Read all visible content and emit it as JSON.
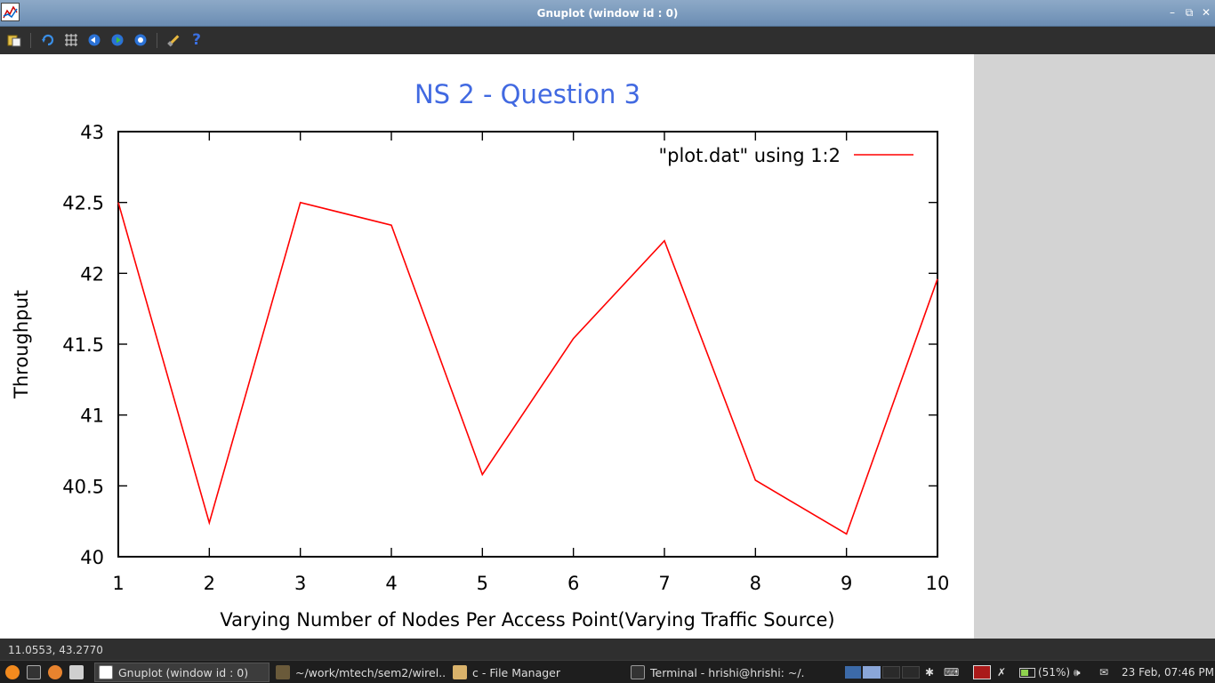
{
  "window": {
    "title": "Gnuplot (window id : 0)",
    "controls": [
      "minimize-icon",
      "restore-icon",
      "close-icon"
    ]
  },
  "toolbar": {
    "buttons": [
      {
        "name": "copy-to-clipboard-icon"
      },
      {
        "name": "replot-icon"
      },
      {
        "name": "toggle-grid-icon"
      },
      {
        "name": "previous-zoom-icon"
      },
      {
        "name": "next-zoom-icon"
      },
      {
        "name": "autoscale-icon"
      },
      {
        "name": "configure-icon"
      },
      {
        "name": "help-icon"
      }
    ]
  },
  "plot": {
    "background": "#ffffff",
    "line_color": "#ff0000",
    "title_color": "#4169e1"
  },
  "chart_data": {
    "type": "line",
    "title": "NS 2 - Question 3",
    "xlabel": "Varying Number of Nodes Per Access Point(Varying Traffic Source)",
    "ylabel": "Throughput",
    "xlim": [
      1,
      10
    ],
    "ylim": [
      40,
      43
    ],
    "xticks": [
      "1",
      "2",
      "3",
      "4",
      "5",
      "6",
      "7",
      "8",
      "9",
      "10"
    ],
    "yticks": [
      "40",
      "40.5",
      "41",
      "41.5",
      "42",
      "42.5",
      "43"
    ],
    "grid": false,
    "legend_position": "top-right",
    "series": [
      {
        "name": "\"plot.dat\" using 1:2",
        "x": [
          1,
          2,
          3,
          4,
          5,
          6,
          7,
          8,
          9,
          10
        ],
        "y": [
          42.5,
          40.24,
          42.5,
          42.34,
          40.58,
          41.54,
          42.23,
          40.54,
          40.16,
          41.96
        ]
      }
    ]
  },
  "status": {
    "coordinates": "11.0553,  43.2770"
  },
  "taskbar": {
    "tasks": [
      {
        "label": "Gnuplot (window id : 0)",
        "active": true
      },
      {
        "label": "~/work/mtech/sem2/wirel...",
        "active": false
      },
      {
        "label": "c - File Manager",
        "active": false
      },
      {
        "label": "Terminal - hrishi@hrishi: ~/...",
        "active": false
      }
    ],
    "battery": "(51%)",
    "clock": "23 Feb, 07:46 PM"
  }
}
